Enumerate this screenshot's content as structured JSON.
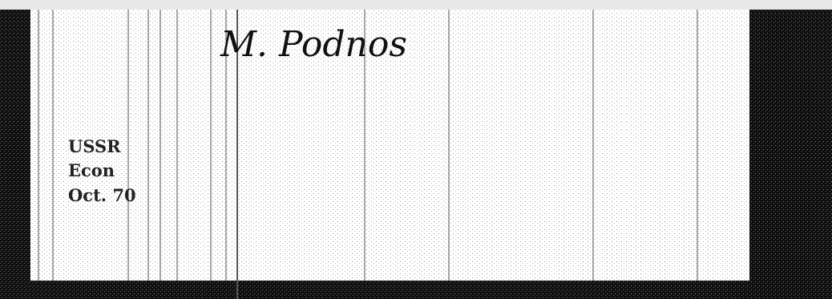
{
  "signature": "M. Podnos",
  "label": {
    "lines": [
      "USSR",
      "Econ",
      "Oct. 70"
    ]
  }
}
